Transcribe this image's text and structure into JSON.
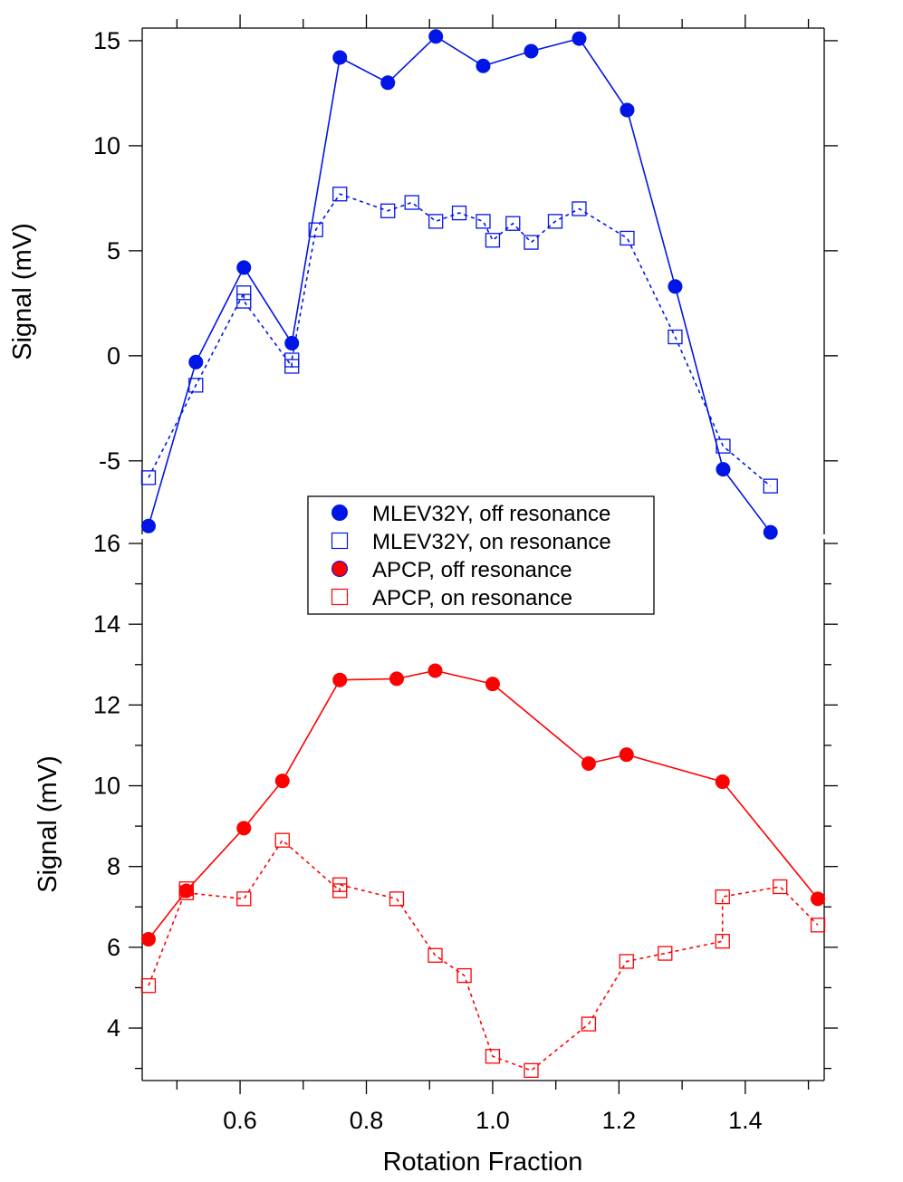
{
  "chart_data": [
    {
      "type": "line",
      "panel": "top",
      "ylabel": "Signal (mV)",
      "xlabel": "",
      "xlim": [
        0.445,
        1.525
      ],
      "ylim": [
        -8.5,
        15.6
      ],
      "yticks": [
        15,
        10,
        5,
        0,
        -5
      ],
      "ytick_labels": [
        "15",
        "10",
        "5",
        "0",
        "-5"
      ],
      "series": [
        {
          "name": "MLEV32Y, off resonance",
          "color": "#0015e6",
          "marker": "filled-circle",
          "line": "solid",
          "x": [
            0.455,
            0.53,
            0.606,
            0.682,
            0.758,
            0.834,
            0.91,
            0.985,
            1.061,
            1.137,
            1.213,
            1.289,
            1.365,
            1.44
          ],
          "y": [
            -8.1,
            -0.3,
            4.2,
            0.6,
            14.2,
            13.0,
            15.2,
            13.8,
            14.5,
            15.1,
            11.7,
            3.3,
            -5.4,
            -8.4
          ]
        },
        {
          "name": "MLEV32Y, on resonance",
          "color": "#0015e6",
          "marker": "open-square",
          "line": "dashed",
          "x": [
            0.455,
            0.53,
            0.606,
            0.606,
            0.682,
            0.682,
            0.72,
            0.758,
            0.834,
            0.872,
            0.91,
            0.947,
            0.985,
            1.0,
            1.032,
            1.061,
            1.099,
            1.137,
            1.213,
            1.289,
            1.365,
            1.44
          ],
          "y": [
            -5.8,
            -1.4,
            3.0,
            2.6,
            -0.5,
            -0.2,
            6.0,
            7.7,
            6.9,
            7.3,
            6.4,
            6.8,
            6.4,
            5.5,
            6.3,
            5.4,
            6.4,
            7.0,
            5.6,
            0.9,
            -4.3,
            -6.2
          ]
        }
      ]
    },
    {
      "type": "line",
      "panel": "bottom",
      "ylabel": "Signal (mV)",
      "xlabel": "Rotation Fraction",
      "xlim": [
        0.445,
        1.525
      ],
      "ylim": [
        2.7,
        16.0
      ],
      "xticks": [
        0.6,
        0.8,
        1.0,
        1.2,
        1.4
      ],
      "xtick_labels": [
        "0.6",
        "0.8",
        "1.0",
        "1.2",
        "1.4"
      ],
      "yticks": [
        16,
        14,
        12,
        10,
        8,
        6,
        4
      ],
      "ytick_labels": [
        "16",
        "14",
        "12",
        "10",
        "8",
        "6",
        "4"
      ],
      "series": [
        {
          "name": "APCP, off resonance",
          "color": "#ff0000",
          "marker": "filled-circle",
          "line": "solid",
          "x": [
            0.455,
            0.515,
            0.606,
            0.667,
            0.758,
            0.848,
            0.909,
            1.0,
            1.152,
            1.212,
            1.364,
            1.515
          ],
          "y": [
            6.2,
            7.4,
            8.95,
            10.12,
            12.62,
            12.65,
            12.85,
            12.52,
            10.55,
            10.77,
            10.1,
            7.2
          ]
        },
        {
          "name": "APCP, on resonance",
          "color": "#ff0000",
          "marker": "open-square",
          "line": "dashed",
          "x": [
            0.455,
            0.515,
            0.515,
            0.606,
            0.667,
            0.758,
            0.758,
            0.848,
            0.909,
            0.955,
            1.0,
            1.061,
            1.152,
            1.212,
            1.273,
            1.364,
            1.364,
            1.455,
            1.515
          ],
          "y": [
            5.05,
            7.45,
            7.35,
            7.2,
            8.65,
            7.4,
            7.55,
            7.2,
            5.8,
            5.3,
            3.3,
            2.95,
            4.1,
            5.65,
            5.85,
            6.15,
            7.25,
            7.5,
            6.55
          ]
        }
      ]
    }
  ],
  "legend": {
    "placement": "center, between panels",
    "entries": [
      "MLEV32Y, off resonance",
      "MLEV32Y, on resonance",
      "APCP, off resonance",
      "APCP, on resonance"
    ]
  }
}
